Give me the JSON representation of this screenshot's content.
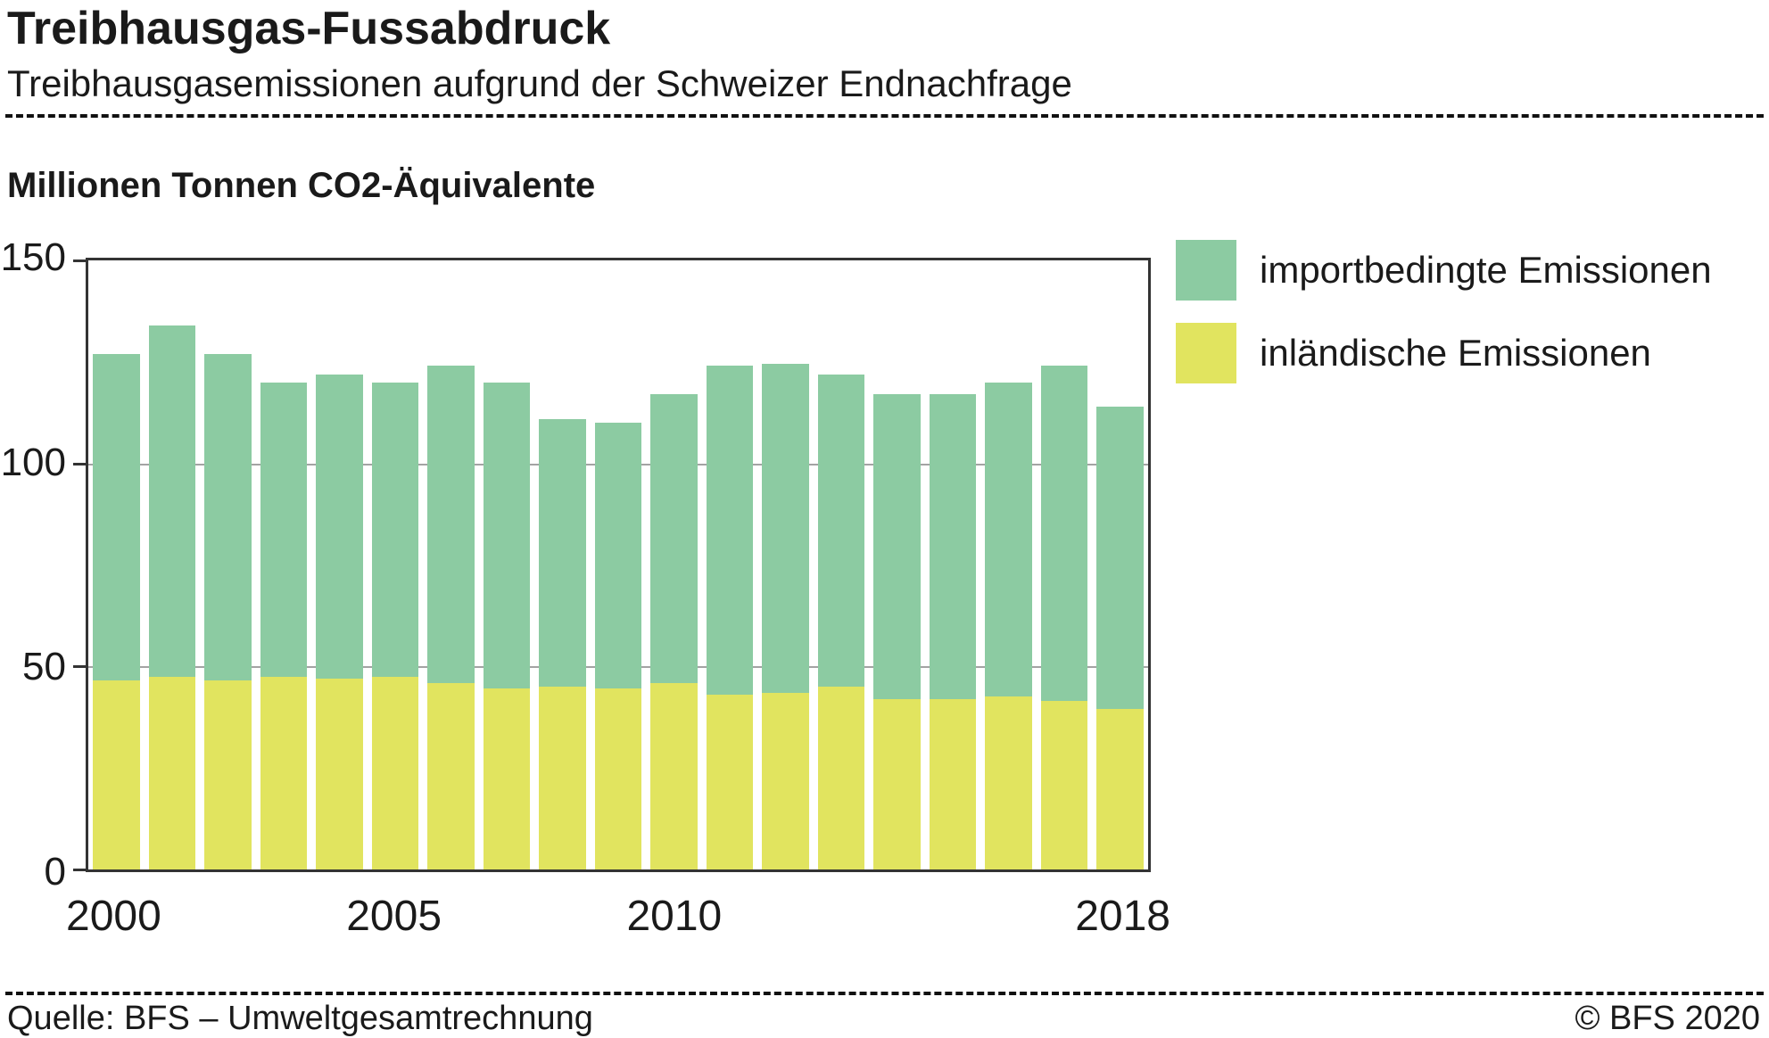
{
  "header": {
    "title": "Treibhausgas-Fussabdruck",
    "subtitle": "Treibhausgasemissionen aufgrund der Schweizer Endnachfrage"
  },
  "chart_data": {
    "type": "bar",
    "stacked": true,
    "title": "Millionen Tonnen CO2-Äquivalente",
    "xlabel": "",
    "ylabel": "Millionen Tonnen CO2-Äquivalente",
    "ylim": [
      0,
      150
    ],
    "yticks": [
      0,
      50,
      100,
      150
    ],
    "grid": true,
    "legend_position": "top-right",
    "categories": [
      "2000",
      "2001",
      "2002",
      "2003",
      "2004",
      "2005",
      "2006",
      "2007",
      "2008",
      "2009",
      "2010",
      "2011",
      "2012",
      "2013",
      "2014",
      "2015",
      "2016",
      "2017",
      "2018"
    ],
    "xticks_shown": [
      "2000",
      "2005",
      "2010",
      "2018"
    ],
    "series": [
      {
        "name": "inländische Emissionen",
        "color": "#e1e45f",
        "values": [
          46.5,
          47.5,
          46.5,
          47.5,
          47,
          47.5,
          46,
          44.5,
          45,
          44.5,
          46,
          43,
          43.5,
          45,
          42,
          42,
          42.5,
          41.5,
          39.5
        ]
      },
      {
        "name": "importbedingte Emissionen",
        "color": "#8ccba2",
        "values": [
          80.5,
          86.5,
          80.5,
          72.5,
          75,
          72.5,
          78,
          75.5,
          66,
          65.5,
          71,
          81,
          81,
          77,
          75,
          75,
          77.5,
          82.5,
          74.5
        ]
      }
    ]
  },
  "legend": {
    "items": [
      {
        "label": "importbedingte Emissionen",
        "color": "#8ccba2"
      },
      {
        "label": "inländische Emissionen",
        "color": "#e1e45f"
      }
    ]
  },
  "footer": {
    "source": "Quelle: BFS – Umweltgesamtrechnung",
    "copyright": "© BFS 2020"
  }
}
